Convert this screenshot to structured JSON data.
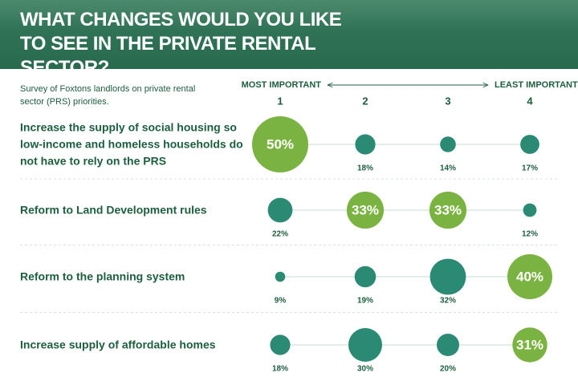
{
  "chart_data": {
    "type": "bubble",
    "title": "WHAT CHANGES WOULD YOU LIKE TO SEE IN THE PRIVATE RENTAL SECTOR?",
    "subtitle": "Survey of Foxtons landlords on private rental sector (PRS) priorities.",
    "scale_start_label": "MOST IMPORTANT",
    "scale_end_label": "LEAST IMPORTANT",
    "categories": [
      "Increase the supply of social housing so low-income and homeless households do not have to rely on the PRS",
      "Reform to Land Development rules",
      "Reform to the planning system",
      "Increase supply of affordable homes"
    ],
    "color": "#2b8a74",
    "highlight_color": "#7bb342",
    "series": [
      {
        "name": "1",
        "values": [
          50,
          22,
          9,
          18
        ],
        "value_labels": [
          "50%",
          "22%",
          "9%",
          "18%"
        ]
      },
      {
        "name": "2",
        "values": [
          18,
          33,
          19,
          30
        ],
        "value_labels": [
          "18%",
          "33%",
          "19%",
          "30%"
        ]
      },
      {
        "name": "3",
        "values": [
          14,
          33,
          32,
          20
        ],
        "value_labels": [
          "14%",
          "33%",
          "32%",
          "20%"
        ]
      },
      {
        "name": "4",
        "values": [
          17,
          12,
          40,
          31
        ],
        "value_labels": [
          "17%",
          "12%",
          "40%",
          "31%"
        ]
      }
    ]
  }
}
